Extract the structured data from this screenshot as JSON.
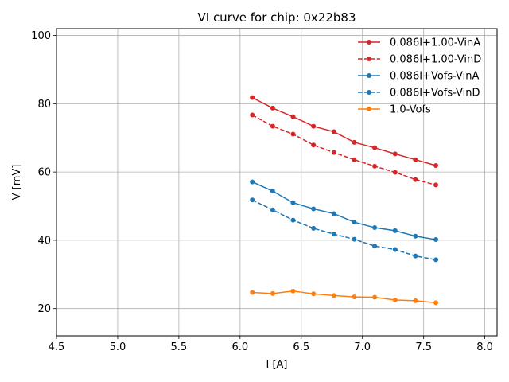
{
  "chart_data": {
    "type": "line",
    "title": "VI curve for chip: 0x22b83",
    "xlabel": "I [A]",
    "ylabel": "V [mV]",
    "xlim": [
      4.5,
      8.1
    ],
    "ylim": [
      12,
      102
    ],
    "xticks": [
      4.5,
      5.0,
      5.5,
      6.0,
      6.5,
      7.0,
      7.5,
      8.0
    ],
    "xtick_labels": [
      "4.5",
      "5.0",
      "5.5",
      "6.0",
      "6.5",
      "7.0",
      "7.5",
      "8.0"
    ],
    "yticks": [
      20,
      40,
      60,
      80,
      100
    ],
    "ytick_labels": [
      "20",
      "40",
      "60",
      "80",
      "100"
    ],
    "grid": true,
    "legend_position": "top-right",
    "x": [
      6.1,
      6.267,
      6.433,
      6.6,
      6.767,
      6.933,
      7.1,
      7.267,
      7.433,
      7.6
    ],
    "series": [
      {
        "name": "0.086I+1.00-VinA",
        "color": "#d62728",
        "dashed": false,
        "values": [
          81.8,
          78.7,
          76.2,
          73.4,
          71.8,
          68.7,
          67.1,
          65.3,
          63.6,
          61.9
        ]
      },
      {
        "name": "0.086I+1.00-VinD",
        "color": "#d62728",
        "dashed": true,
        "values": [
          76.7,
          73.4,
          71.1,
          67.9,
          65.7,
          63.6,
          61.7,
          59.9,
          57.8,
          56.2
        ]
      },
      {
        "name": "0.086I+Vofs-VinA",
        "color": "#1f77b4",
        "dashed": false,
        "values": [
          57.1,
          54.4,
          51.0,
          49.2,
          47.8,
          45.3,
          43.7,
          42.8,
          41.2,
          40.2
        ]
      },
      {
        "name": "0.086I+Vofs-VinD",
        "color": "#1f77b4",
        "dashed": true,
        "values": [
          51.8,
          48.9,
          45.9,
          43.5,
          41.8,
          40.3,
          38.3,
          37.3,
          35.4,
          34.3
        ]
      },
      {
        "name": "1.0-Vofs",
        "color": "#ff7f0e",
        "dashed": false,
        "values": [
          24.7,
          24.4,
          25.1,
          24.3,
          23.8,
          23.4,
          23.3,
          22.5,
          22.3,
          21.7
        ]
      }
    ]
  }
}
